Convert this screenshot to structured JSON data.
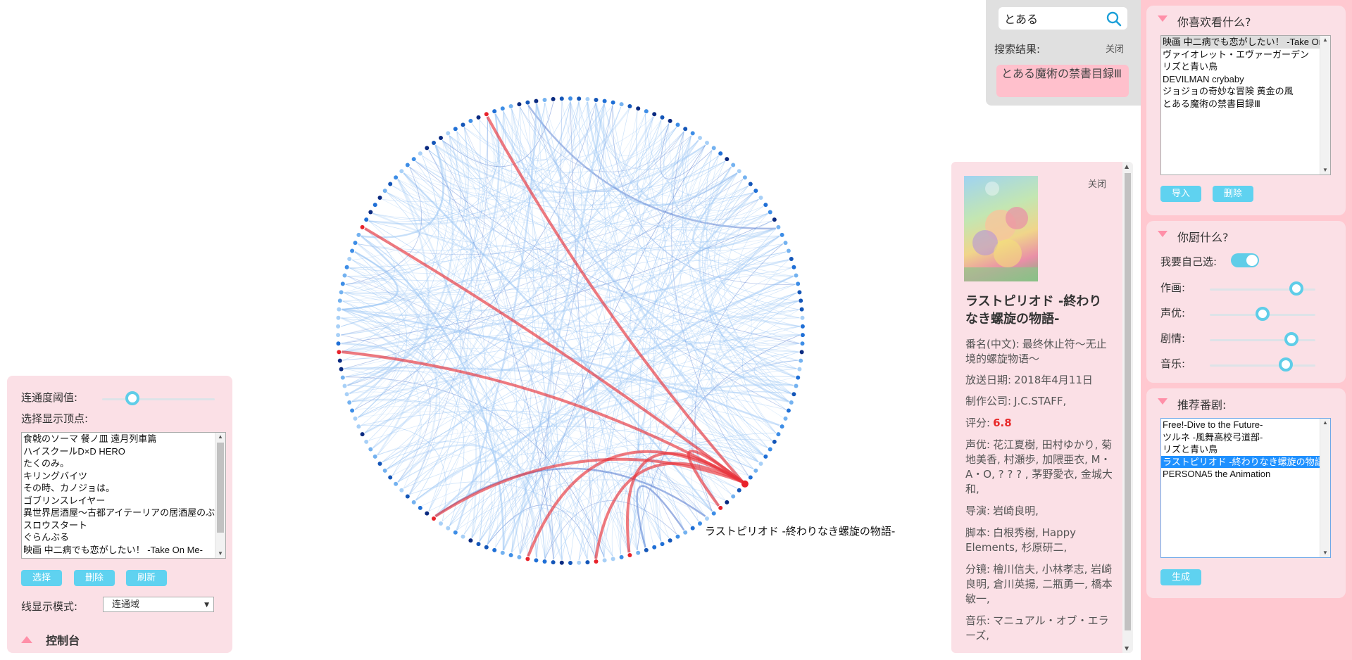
{
  "search": {
    "query": "とある",
    "results_label": "搜索结果:",
    "close_label": "关闭",
    "results": [
      "とある魔術の禁書目録Ⅲ"
    ]
  },
  "likes_panel": {
    "title": "你喜欢看什么?",
    "items": [
      "映画 中二病でも恋がしたい！ -Take On Me-",
      "ヴァイオレット・エヴァーガーデン",
      "リズと青い鳥",
      "DEVILMAN crybaby",
      "ジョジョの奇妙な冒険 黄金の風",
      "とある魔術の禁書目録Ⅲ"
    ],
    "import_label": "导入",
    "delete_label": "删除"
  },
  "fan_panel": {
    "title": "你厨什么?",
    "self_select_label": "我要自己选:",
    "self_select_on": true,
    "sliders": [
      {
        "label": "作画:",
        "value": 0.82
      },
      {
        "label": "声优:",
        "value": 0.5
      },
      {
        "label": "剧情:",
        "value": 0.77
      },
      {
        "label": "音乐:",
        "value": 0.72
      }
    ]
  },
  "recommend_panel": {
    "title": "推荐番剧:",
    "items": [
      "Free!-Dive to the Future-",
      "ツルネ -風舞高校弓道部-",
      "リズと青い鳥",
      "ラストピリオド -終わりなき螺旋の物語-",
      "PERSONA5 the Animation"
    ],
    "selected_index": 3,
    "generate_label": "生成"
  },
  "detail": {
    "close_label": "关闭",
    "title": "ラストピリオド -終わりなき螺旋の物語-",
    "cn_name_label": "番名(中文):",
    "cn_name": "最终休止符～无止境的螺旋物语～",
    "air_date_label": "放送日期:",
    "air_date": "2018年4月11日",
    "studio_label": "制作公司:",
    "studio": "J.C.STAFF,",
    "score_label": "评分:",
    "score": "6.8",
    "cast_label": "声优:",
    "cast": "花江夏樹, 田村ゆかり, 菊地美香, 村瀬歩, 加隈亜衣, M・A・O, ? ? ? , 茅野愛衣, 金城大和,",
    "director_label": "导演:",
    "director": "岩崎良明,",
    "script_label": "脚本:",
    "script": "白根秀樹, Happy Elements, 杉原研二,",
    "storyboard_label": "分镜:",
    "storyboard": "檜川信夫, 小林孝志, 岩崎良明, 倉川英揚, 二瓶勇一, 橋本敏一,",
    "music_label": "音乐:",
    "music": "マニュアル・オブ・エラーズ,"
  },
  "chord": {
    "hover_label": "ラストピリオド -終わりなき螺旋の物語-"
  },
  "control_panel": {
    "threshold_label": "连通度阈值:",
    "threshold_value": 0.27,
    "vertex_label": "选择显示顶点:",
    "vertices": [
      "食戟のソーマ 餐ノ皿 遠月列車篇",
      "ハイスクールD×D HERO",
      "たくのみ。",
      "キリングバイツ",
      "その時、カノジョは。",
      "ゴブリンスレイヤー",
      "異世界居酒屋～古都アイテーリアの居酒屋のぶ～",
      "スロウスタート",
      "ぐらんぶる",
      "映画 中二病でも恋がしたい！ -Take On Me-"
    ],
    "select_label": "选择",
    "delete_label": "删除",
    "refresh_label": "刷新",
    "line_mode_label": "线显示模式:",
    "line_mode_value": "连通域",
    "footer_title": "控制台"
  },
  "colors": {
    "accent_blue": "#5fd2f0",
    "panel_pink": "#fbe0e6",
    "column_pink": "#ffc8d0",
    "highlight_red": "#e8333a",
    "score_red": "#e82a2a"
  }
}
